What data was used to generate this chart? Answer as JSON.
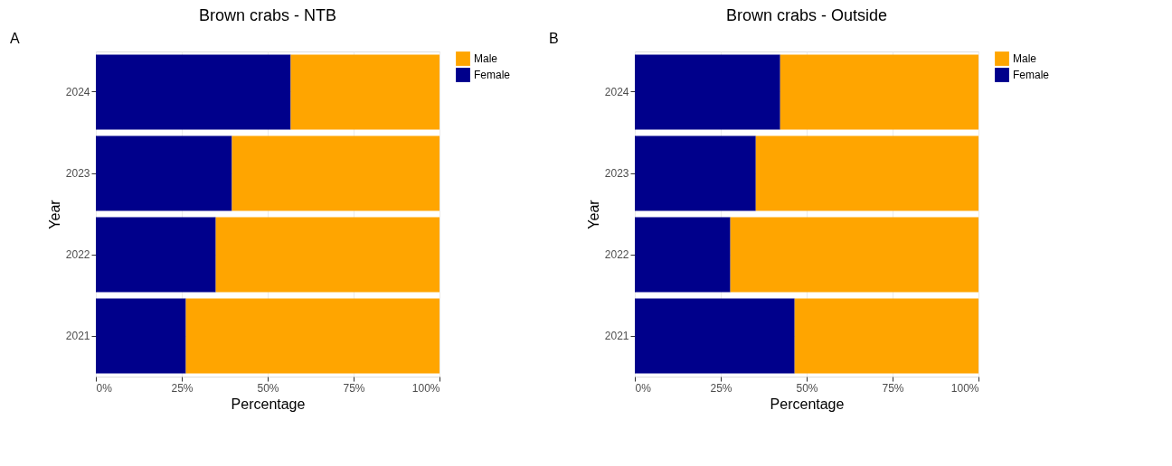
{
  "chart_data": [
    {
      "type": "bar",
      "orientation": "horizontal",
      "stacked": true,
      "title": "Brown crabs - NTB",
      "xlabel": "Percentage",
      "ylabel": "Year",
      "annotations": [
        "A"
      ],
      "categories": [
        "2024",
        "2023",
        "2022",
        "2021"
      ],
      "series": [
        {
          "name": "Female",
          "color": "#00008b",
          "values": [
            56.7,
            39.6,
            34.9,
            26.2
          ]
        },
        {
          "name": "Male",
          "color": "#ffa500",
          "values": [
            43.3,
            60.4,
            65.1,
            73.8
          ]
        }
      ],
      "xlim": [
        0,
        100
      ],
      "xticks": [
        {
          "value": 0,
          "label": "0%"
        },
        {
          "value": 25,
          "label": "25%"
        },
        {
          "value": 50,
          "label": "50%"
        },
        {
          "value": 75,
          "label": "75%"
        },
        {
          "value": 100,
          "label": "100%"
        }
      ],
      "grid": true,
      "legend": "right"
    },
    {
      "type": "bar",
      "orientation": "horizontal",
      "stacked": true,
      "title": "Brown crabs - Outside",
      "xlabel": "Percentage",
      "ylabel": "Year",
      "annotations": [
        "B"
      ],
      "categories": [
        "2024",
        "2023",
        "2022",
        "2021"
      ],
      "series": [
        {
          "name": "Female",
          "color": "#00008b",
          "values": [
            42.3,
            35.2,
            27.8,
            46.5
          ]
        },
        {
          "name": "Male",
          "color": "#ffa500",
          "values": [
            57.7,
            64.8,
            72.2,
            53.5
          ]
        }
      ],
      "xlim": [
        0,
        100
      ],
      "xticks": [
        {
          "value": 0,
          "label": "0%"
        },
        {
          "value": 25,
          "label": "25%"
        },
        {
          "value": 50,
          "label": "50%"
        },
        {
          "value": 75,
          "label": "75%"
        },
        {
          "value": 100,
          "label": "100%"
        }
      ],
      "grid": true,
      "legend": "right"
    }
  ]
}
